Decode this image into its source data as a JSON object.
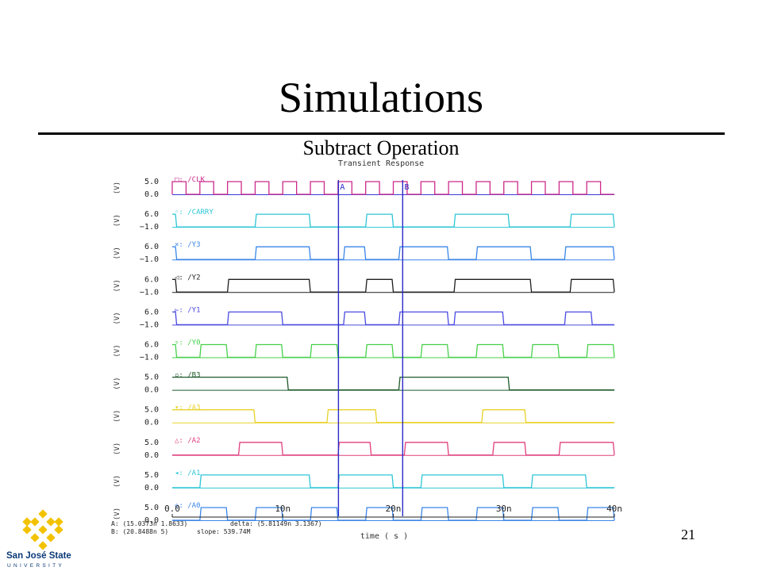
{
  "slide": {
    "title": "Simulations",
    "subtitle": "Subtract Operation",
    "page_number": "21"
  },
  "logo": {
    "name": "San José State",
    "sub": "UNIVERSITY",
    "color": "#0b3a78",
    "accent": "#f2c200"
  },
  "chart_data": {
    "type": "line",
    "title": "Transient Response",
    "xlabel": "time ( s )",
    "x_ticks": [
      "0.0",
      "10n",
      "20n",
      "30n",
      "40n"
    ],
    "xlim": [
      0,
      40
    ],
    "x_unit": "ns",
    "ylabel": "(V)",
    "cursors": [
      {
        "name": "A",
        "x": 15.0373
      },
      {
        "name": "B",
        "x": 20.8488
      }
    ],
    "readout": {
      "a": "A: (15.0373n 1.8633)",
      "delta": "delta: (5.81149n 3.1367)",
      "b": "B: (20.8488n 5)",
      "slope": "slope: 539.74M"
    },
    "series": [
      {
        "name": "/CLK",
        "marker": "□:",
        "color": "#cc2a8a",
        "axis_color": "#3a3ad8",
        "ymax": "5.0",
        "ymin": "0.0",
        "type": "clock",
        "period": 2.5
      },
      {
        "name": "/CARRY",
        "marker": "◦:",
        "color": "#2ec6d6",
        "ymax": "6.0",
        "ymin": "−1.0",
        "high": [
          [
            0,
            0.4
          ],
          [
            7.5,
            12.5
          ],
          [
            17.5,
            20
          ],
          [
            25.5,
            30.5
          ],
          [
            36,
            40
          ]
        ]
      },
      {
        "name": "/Y3",
        "marker": "×:",
        "color": "#3a86e8",
        "ymax": "6.0",
        "ymin": "−1.0",
        "high": [
          [
            0,
            0.4
          ],
          [
            7.5,
            12.5
          ],
          [
            15.5,
            17.5
          ],
          [
            20.5,
            25
          ],
          [
            27.5,
            32.5
          ],
          [
            35.5,
            40
          ]
        ]
      },
      {
        "name": "/Y2",
        "marker": "◁:",
        "color": "#1f1f1f",
        "ymax": "6.0",
        "ymin": "−1.0",
        "high": [
          [
            0,
            0.4
          ],
          [
            5,
            12.5
          ],
          [
            17.5,
            20
          ],
          [
            25.5,
            32.5
          ],
          [
            36,
            40
          ]
        ]
      },
      {
        "name": "/Y1",
        "marker": "▻:",
        "color": "#4a4ae0",
        "ymax": "6.0",
        "ymin": "−1.0",
        "high": [
          [
            0,
            0.4
          ],
          [
            5,
            10
          ],
          [
            15.5,
            17.5
          ],
          [
            20.5,
            25
          ],
          [
            25.5,
            30
          ],
          [
            35.5,
            38
          ]
        ]
      },
      {
        "name": "/Y0",
        "marker": "▿:",
        "color": "#46d04a",
        "ymax": "6.0",
        "ymin": "−1.0",
        "high": [
          [
            0,
            0.4
          ],
          [
            2.5,
            5
          ],
          [
            7.5,
            10
          ],
          [
            12.5,
            15
          ],
          [
            17.5,
            20
          ],
          [
            22.5,
            25
          ],
          [
            27.5,
            30
          ],
          [
            32.5,
            35
          ],
          [
            37.5,
            40
          ]
        ]
      },
      {
        "name": "/B3",
        "marker": "▫:",
        "color": "#1e5a2a",
        "ymax": "5.0",
        "ymin": "0.0",
        "high": [
          [
            0,
            10.5
          ],
          [
            20.5,
            30.5
          ]
        ]
      },
      {
        "name": "/A3",
        "marker": "▾:",
        "color": "#e8d22a",
        "ymax": "5.0",
        "ymin": "0.0",
        "high": [
          [
            0,
            7.5
          ],
          [
            14,
            18.5
          ],
          [
            28,
            32
          ]
        ]
      },
      {
        "name": "/A2",
        "marker": "△:",
        "color": "#e0407e",
        "ymax": "5.0",
        "ymin": "0.0",
        "high": [
          [
            6,
            10
          ],
          [
            15,
            18
          ],
          [
            21,
            25
          ],
          [
            29,
            32
          ],
          [
            35,
            40
          ]
        ]
      },
      {
        "name": "/A1",
        "marker": "◂:",
        "color": "#2ec6d6",
        "ymax": "5.0",
        "ymin": "0.0",
        "high": [
          [
            2.5,
            12.5
          ],
          [
            15,
            20
          ],
          [
            22.5,
            30
          ],
          [
            32.5,
            37.5
          ]
        ]
      },
      {
        "name": "/A0",
        "marker": "◇:",
        "color": "#3a86e8",
        "ymax": "5.0",
        "ymin": "0.0",
        "high": [
          [
            2.5,
            5
          ],
          [
            7.5,
            10
          ],
          [
            12.5,
            15
          ],
          [
            17.5,
            20
          ],
          [
            22.5,
            25
          ],
          [
            27.5,
            30
          ],
          [
            32.5,
            35
          ],
          [
            37.5,
            40
          ]
        ]
      }
    ]
  }
}
